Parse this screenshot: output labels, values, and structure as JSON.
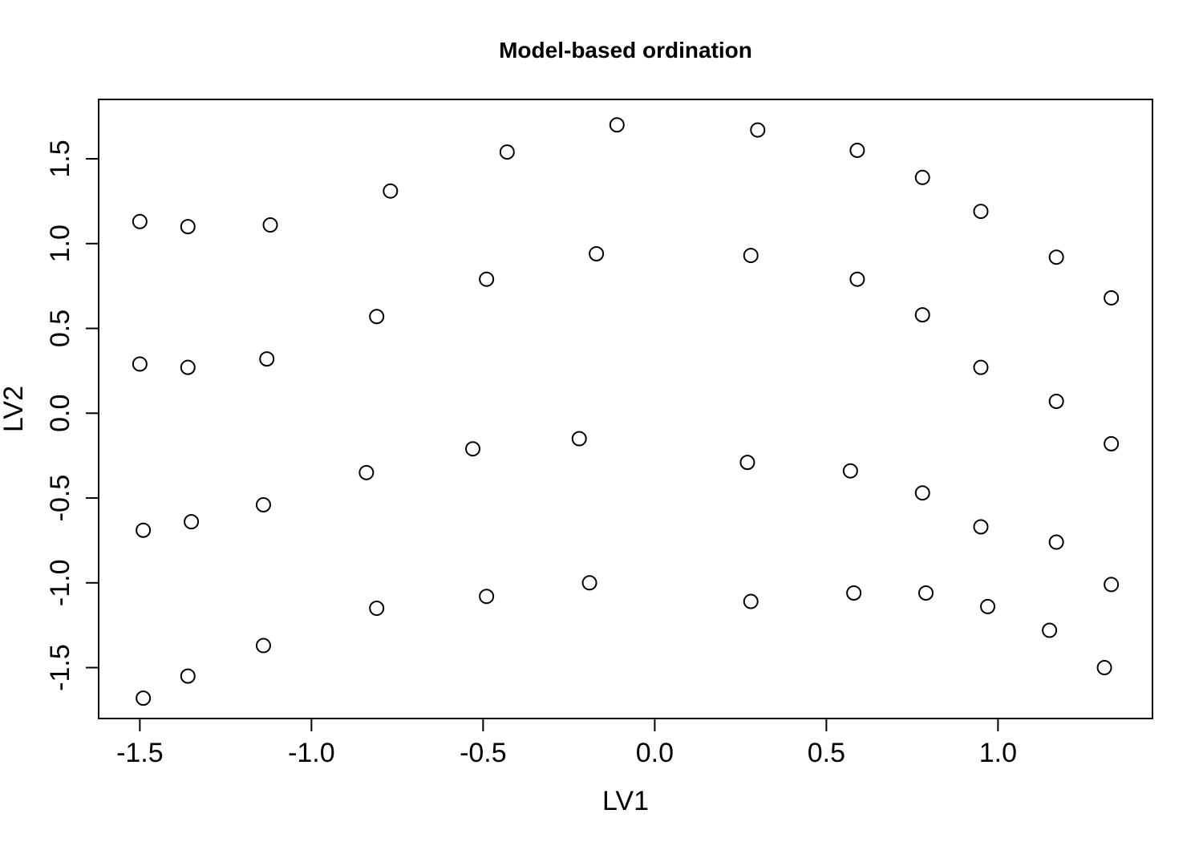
{
  "chart_data": {
    "type": "scatter",
    "title": "Model-based ordination",
    "xlabel": "LV1",
    "ylabel": "LV2",
    "xlim": [
      -1.62,
      1.45
    ],
    "ylim": [
      -1.8,
      1.85
    ],
    "x_ticks": [
      -1.5,
      -1.0,
      -0.5,
      0.0,
      0.5,
      1.0
    ],
    "x_tick_labels": [
      "-1.5",
      "-1.0",
      "-0.5",
      "0.0",
      "0.5",
      "1.0"
    ],
    "y_ticks": [
      -1.5,
      -1.0,
      -0.5,
      0.0,
      0.5,
      1.0,
      1.5
    ],
    "y_tick_labels": [
      "-1.5",
      "-1.0",
      "-0.5",
      "0.0",
      "0.5",
      "1.0",
      "1.5"
    ],
    "grid": false,
    "legend": "none",
    "point_style": "open-circle",
    "points": [
      {
        "x": -0.11,
        "y": 1.7
      },
      {
        "x": 0.3,
        "y": 1.67
      },
      {
        "x": -0.43,
        "y": 1.54
      },
      {
        "x": 0.59,
        "y": 1.55
      },
      {
        "x": 0.78,
        "y": 1.39
      },
      {
        "x": -0.77,
        "y": 1.31
      },
      {
        "x": 0.95,
        "y": 1.19
      },
      {
        "x": -1.5,
        "y": 1.13
      },
      {
        "x": -1.36,
        "y": 1.1
      },
      {
        "x": -1.12,
        "y": 1.11
      },
      {
        "x": -0.17,
        "y": 0.94
      },
      {
        "x": 0.28,
        "y": 0.93
      },
      {
        "x": 1.17,
        "y": 0.92
      },
      {
        "x": -0.49,
        "y": 0.79
      },
      {
        "x": 0.59,
        "y": 0.79
      },
      {
        "x": 1.33,
        "y": 0.68
      },
      {
        "x": 0.78,
        "y": 0.58
      },
      {
        "x": -0.81,
        "y": 0.57
      },
      {
        "x": -1.13,
        "y": 0.32
      },
      {
        "x": -1.5,
        "y": 0.29
      },
      {
        "x": -1.36,
        "y": 0.27
      },
      {
        "x": 0.95,
        "y": 0.27
      },
      {
        "x": 1.17,
        "y": 0.07
      },
      {
        "x": -0.22,
        "y": -0.15
      },
      {
        "x": 1.33,
        "y": -0.18
      },
      {
        "x": -0.53,
        "y": -0.21
      },
      {
        "x": 0.27,
        "y": -0.29
      },
      {
        "x": 0.57,
        "y": -0.34
      },
      {
        "x": -0.84,
        "y": -0.35
      },
      {
        "x": 0.78,
        "y": -0.47
      },
      {
        "x": -1.14,
        "y": -0.54
      },
      {
        "x": -1.35,
        "y": -0.64
      },
      {
        "x": 0.95,
        "y": -0.67
      },
      {
        "x": -1.49,
        "y": -0.69
      },
      {
        "x": 1.17,
        "y": -0.76
      },
      {
        "x": -0.19,
        "y": -1.0
      },
      {
        "x": 1.33,
        "y": -1.01
      },
      {
        "x": 0.58,
        "y": -1.06
      },
      {
        "x": 0.79,
        "y": -1.06
      },
      {
        "x": -0.49,
        "y": -1.08
      },
      {
        "x": 0.28,
        "y": -1.11
      },
      {
        "x": 0.97,
        "y": -1.14
      },
      {
        "x": -0.81,
        "y": -1.15
      },
      {
        "x": 1.15,
        "y": -1.28
      },
      {
        "x": -1.14,
        "y": -1.37
      },
      {
        "x": 1.31,
        "y": -1.5
      },
      {
        "x": -1.36,
        "y": -1.55
      },
      {
        "x": -1.49,
        "y": -1.68
      }
    ]
  }
}
